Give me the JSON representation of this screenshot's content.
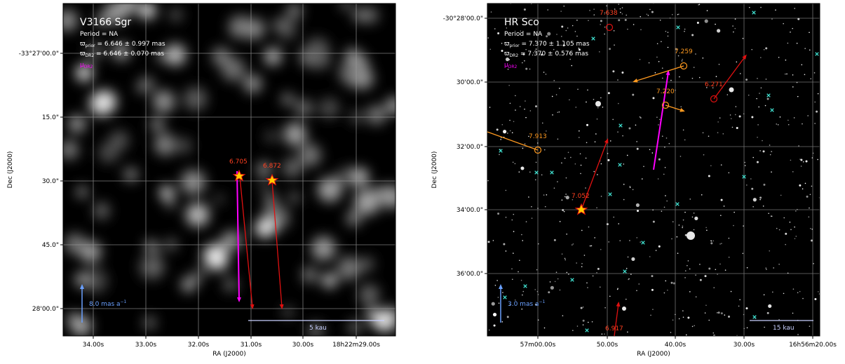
{
  "panels": [
    {
      "title": "V3166 Sgr",
      "period": "Period = NA",
      "plx_prior": "ϖ_prior = 6.646 ± 0.997 mas",
      "plx_dr2": "ϖ_DR2 = 6.646 ± 0.070 mas",
      "mu_label": "μ_DR2",
      "scale_arrow_label": "8.0 mas a⁻¹",
      "scale_bar_label": "5 kau",
      "xlabel": "RA (J2000)",
      "ylabel": "Dec (J2000)",
      "xticks": [
        "34.00s",
        "33.00s",
        "32.00s",
        "31.00s",
        "30.00s",
        "18h22m29.00s"
      ],
      "yticks": [
        "-33°27'00.0\"",
        "15.0\"",
        "30.0\"",
        "45.0\"",
        "28'00.0\""
      ],
      "mag_labels": [
        "6.705",
        "6.872"
      ]
    },
    {
      "title": "HR Sco",
      "period": "Period = NA",
      "plx_prior": "ϖ_prior = 7.370 ± 1.105 mas",
      "plx_dr2": "ϖ_DR2 = 7.370 ± 0.576 mas",
      "mu_label": "μ_DR2",
      "scale_arrow_label": "3.0 mas a⁻¹",
      "scale_bar_label": "15 kau",
      "xlabel": "RA (J2000)",
      "ylabel": "Dec (J2000)",
      "xticks": [
        "57m00.00s",
        "50.00s",
        "40.00s",
        "30.00s",
        "16h56m20.00s"
      ],
      "yticks": [
        "-30°28'00.0\"",
        "30'00.0\"",
        "32'00.0\"",
        "34'00.0\"",
        "36'00.0\""
      ],
      "mag_labels": [
        "7.638",
        "7.259",
        "7.220",
        "6.271",
        "7.913",
        "7.052",
        "6.917"
      ]
    }
  ],
  "colors": {
    "magenta": "#ff00ff",
    "red": "#e01010",
    "orange": "#ff9a20",
    "blue": "#6aa0ff",
    "cyan": "#40e0d0"
  }
}
